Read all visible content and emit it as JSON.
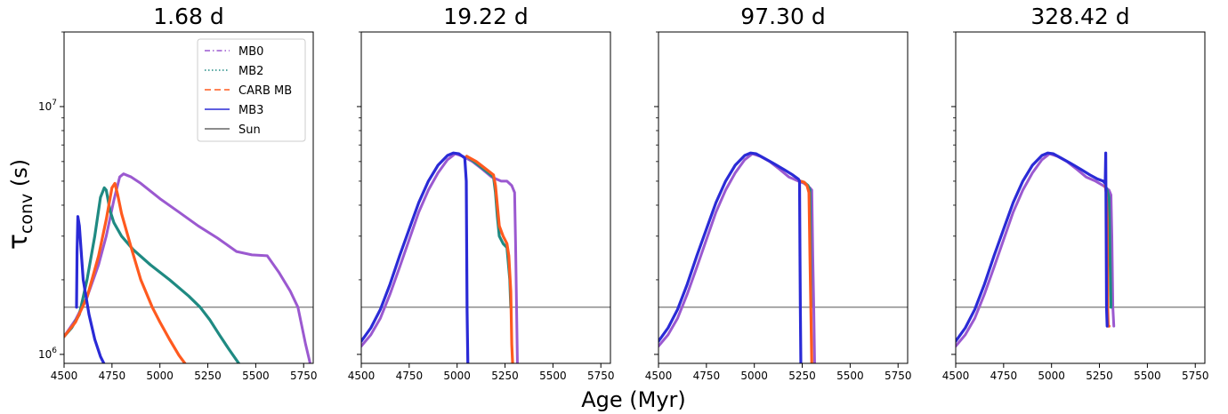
{
  "figure": {
    "xlabel": "Age (Myr)",
    "ylabel_main": "τ",
    "ylabel_sub": "conv",
    "ylabel_unit": " (s)"
  },
  "legend": {
    "placement": "top-right of first panel",
    "entries": [
      {
        "label": "MB0",
        "color": "#9b59d0",
        "style": "dashdot"
      },
      {
        "label": "MB2",
        "color": "#1f8a82",
        "style": "dotted"
      },
      {
        "label": "CARB MB",
        "color": "#ff5a1f",
        "style": "dashed"
      },
      {
        "label": "MB3",
        "color": "#2a2ad6",
        "style": "solid"
      },
      {
        "label": "Sun",
        "color": "#666666",
        "style": "solid"
      }
    ]
  },
  "axes": {
    "x_range": [
      4500,
      5800
    ],
    "x_ticks": [
      "4500",
      "4750",
      "5000",
      "5250",
      "5500",
      "5750"
    ],
    "x_tick_values": [
      4500,
      4750,
      5000,
      5250,
      5500,
      5750
    ],
    "y_scale": "log",
    "y_range": [
      920000,
      20000000
    ],
    "y_tick_labels": [
      {
        "base": "10",
        "exp": "6"
      },
      {
        "base": "10",
        "exp": "7"
      }
    ],
    "y_tick_values": [
      1000000,
      10000000
    ],
    "sun_reference_y": 1550000
  },
  "chart_data": [
    {
      "type": "line",
      "title": "1.68 d",
      "series": [
        {
          "name": "MB0",
          "x": [
            4500,
            4560,
            4620,
            4680,
            4720,
            4760,
            4790,
            4810,
            4850,
            4900,
            5000,
            5100,
            5200,
            5300,
            5400,
            5480,
            5560,
            5620,
            5680,
            5720,
            5760,
            5790
          ],
          "y": [
            1180000,
            1380000,
            1700000,
            2300000,
            3000000,
            4200000,
            5200000,
            5350000,
            5200000,
            4900000,
            4250000,
            3750000,
            3300000,
            2950000,
            2600000,
            2520000,
            2500000,
            2150000,
            1800000,
            1550000,
            1100000,
            880000
          ]
        },
        {
          "name": "MB2",
          "x": [
            4500,
            4540,
            4580,
            4620,
            4660,
            4690,
            4710,
            4720,
            4740,
            4760,
            4800,
            4860,
            4950,
            5050,
            5150,
            5210,
            5260,
            5310,
            5360,
            5420
          ],
          "y": [
            1180000,
            1280000,
            1450000,
            2000000,
            3000000,
            4300000,
            4700000,
            4600000,
            3800000,
            3400000,
            3000000,
            2650000,
            2300000,
            2000000,
            1720000,
            1550000,
            1380000,
            1200000,
            1050000,
            900000
          ]
        },
        {
          "name": "CARB MB",
          "x": [
            4500,
            4560,
            4620,
            4680,
            4720,
            4750,
            4765,
            4780,
            4800,
            4850,
            4900,
            4960,
            5000,
            5050,
            5100,
            5140
          ],
          "y": [
            1180000,
            1350000,
            1700000,
            2500000,
            3500000,
            4700000,
            4900000,
            4400000,
            3700000,
            2700000,
            2000000,
            1550000,
            1350000,
            1150000,
            990000,
            900000
          ]
        },
        {
          "name": "MB3",
          "x": [
            4565,
            4568,
            4572,
            4580,
            4600,
            4630,
            4660,
            4690,
            4720
          ],
          "y": [
            1550000,
            2600000,
            3600000,
            3300000,
            2000000,
            1450000,
            1150000,
            980000,
            880000
          ]
        }
      ]
    },
    {
      "type": "line",
      "title": "19.22 d",
      "series": [
        {
          "name": "MB0",
          "x": [
            4500,
            4550,
            4600,
            4650,
            4700,
            4750,
            4800,
            4850,
            4900,
            4950,
            4990,
            5030,
            5080,
            5130,
            5180,
            5230,
            5260,
            5285,
            5300,
            5305,
            5310,
            5315
          ],
          "y": [
            1080000,
            1200000,
            1400000,
            1750000,
            2250000,
            2900000,
            3750000,
            4600000,
            5400000,
            6100000,
            6450000,
            6300000,
            6000000,
            5600000,
            5200000,
            5000000,
            5000000,
            4800000,
            4500000,
            2800000,
            1550000,
            900000
          ]
        },
        {
          "name": "MB2",
          "x": [
            5050,
            5100,
            5150,
            5190,
            5200,
            5210,
            5220,
            5240,
            5260,
            5275,
            5280
          ],
          "y": [
            6300000,
            5900000,
            5500000,
            5200000,
            4500000,
            3600000,
            3000000,
            2800000,
            2700000,
            2000000,
            1550000
          ]
        },
        {
          "name": "CARB MB",
          "x": [
            5050,
            5100,
            5150,
            5190,
            5200,
            5220,
            5240,
            5260,
            5270,
            5280,
            5285,
            5290
          ],
          "y": [
            6300000,
            6000000,
            5600000,
            5300000,
            4800000,
            3300000,
            3000000,
            2800000,
            2500000,
            1800000,
            1100000,
            900000
          ]
        },
        {
          "name": "MB3",
          "x": [
            4500,
            4550,
            4600,
            4650,
            4700,
            4750,
            4800,
            4850,
            4900,
            4950,
            4980,
            5010,
            5040,
            5048,
            5050,
            5052,
            5056
          ],
          "y": [
            1130000,
            1280000,
            1520000,
            1920000,
            2500000,
            3200000,
            4100000,
            5000000,
            5800000,
            6350000,
            6500000,
            6450000,
            6200000,
            5000000,
            2500000,
            1500000,
            900000
          ]
        }
      ]
    },
    {
      "type": "line",
      "title": "97.30 d",
      "series": [
        {
          "name": "MB0",
          "x": [
            4500,
            4550,
            4600,
            4650,
            4700,
            4750,
            4800,
            4850,
            4900,
            4950,
            4990,
            5030,
            5080,
            5130,
            5180,
            5230,
            5260,
            5290,
            5300,
            5305,
            5310,
            5315
          ],
          "y": [
            1080000,
            1200000,
            1400000,
            1750000,
            2250000,
            2900000,
            3750000,
            4600000,
            5400000,
            6100000,
            6450000,
            6300000,
            6000000,
            5600000,
            5200000,
            5000000,
            4900000,
            4700000,
            4600000,
            2500000,
            1550000,
            900000
          ]
        },
        {
          "name": "MB2",
          "x": [
            5240,
            5260,
            5280,
            5290,
            5293,
            5296
          ],
          "y": [
            5000000,
            4950000,
            4800000,
            4600000,
            2500000,
            1550000
          ]
        },
        {
          "name": "CARB MB",
          "x": [
            5240,
            5260,
            5275,
            5285,
            5290,
            5295,
            5300
          ],
          "y": [
            5000000,
            4950000,
            4800000,
            4500000,
            2500000,
            1550000,
            900000
          ]
        },
        {
          "name": "MB3",
          "x": [
            4500,
            4550,
            4600,
            4650,
            4700,
            4750,
            4800,
            4850,
            4900,
            4950,
            4980,
            5010,
            5050,
            5100,
            5150,
            5200,
            5230,
            5236,
            5238,
            5240,
            5243
          ],
          "y": [
            1130000,
            1280000,
            1520000,
            1920000,
            2500000,
            3200000,
            4100000,
            5000000,
            5800000,
            6350000,
            6500000,
            6450000,
            6200000,
            5900000,
            5600000,
            5300000,
            5100000,
            5000000,
            2500000,
            1550000,
            900000
          ]
        }
      ]
    },
    {
      "type": "line",
      "title": "328.42 d",
      "series": [
        {
          "name": "MB0",
          "x": [
            4500,
            4550,
            4600,
            4650,
            4700,
            4750,
            4800,
            4850,
            4900,
            4950,
            4990,
            5030,
            5080,
            5130,
            5180,
            5230,
            5270,
            5300,
            5310,
            5315,
            5320,
            5325
          ],
          "y": [
            1080000,
            1200000,
            1400000,
            1750000,
            2250000,
            2900000,
            3750000,
            4600000,
            5400000,
            6100000,
            6450000,
            6300000,
            6000000,
            5600000,
            5200000,
            5000000,
            4800000,
            4600000,
            4400000,
            3000000,
            1550000,
            1300000
          ]
        },
        {
          "name": "MB2",
          "x": [
            5280,
            5290,
            5300,
            5305,
            5310
          ],
          "y": [
            4800000,
            4600000,
            4300000,
            2500000,
            1550000
          ]
        },
        {
          "name": "CARB MB",
          "x": [
            5280,
            5285,
            5290,
            5293,
            5296,
            5300
          ],
          "y": [
            4800000,
            4500000,
            3500000,
            1550000,
            1300000,
            1300000
          ]
        },
        {
          "name": "MB3",
          "x": [
            4500,
            4550,
            4600,
            4650,
            4700,
            4750,
            4800,
            4850,
            4900,
            4950,
            4980,
            5010,
            5050,
            5100,
            5150,
            5200,
            5240,
            5270,
            5280,
            5283,
            5285,
            5287,
            5290
          ],
          "y": [
            1130000,
            1280000,
            1520000,
            1920000,
            2500000,
            3200000,
            4100000,
            5000000,
            5800000,
            6350000,
            6500000,
            6450000,
            6200000,
            5900000,
            5600000,
            5300000,
            5100000,
            5000000,
            4900000,
            6500000,
            3000000,
            1550000,
            1300000
          ]
        }
      ]
    }
  ]
}
